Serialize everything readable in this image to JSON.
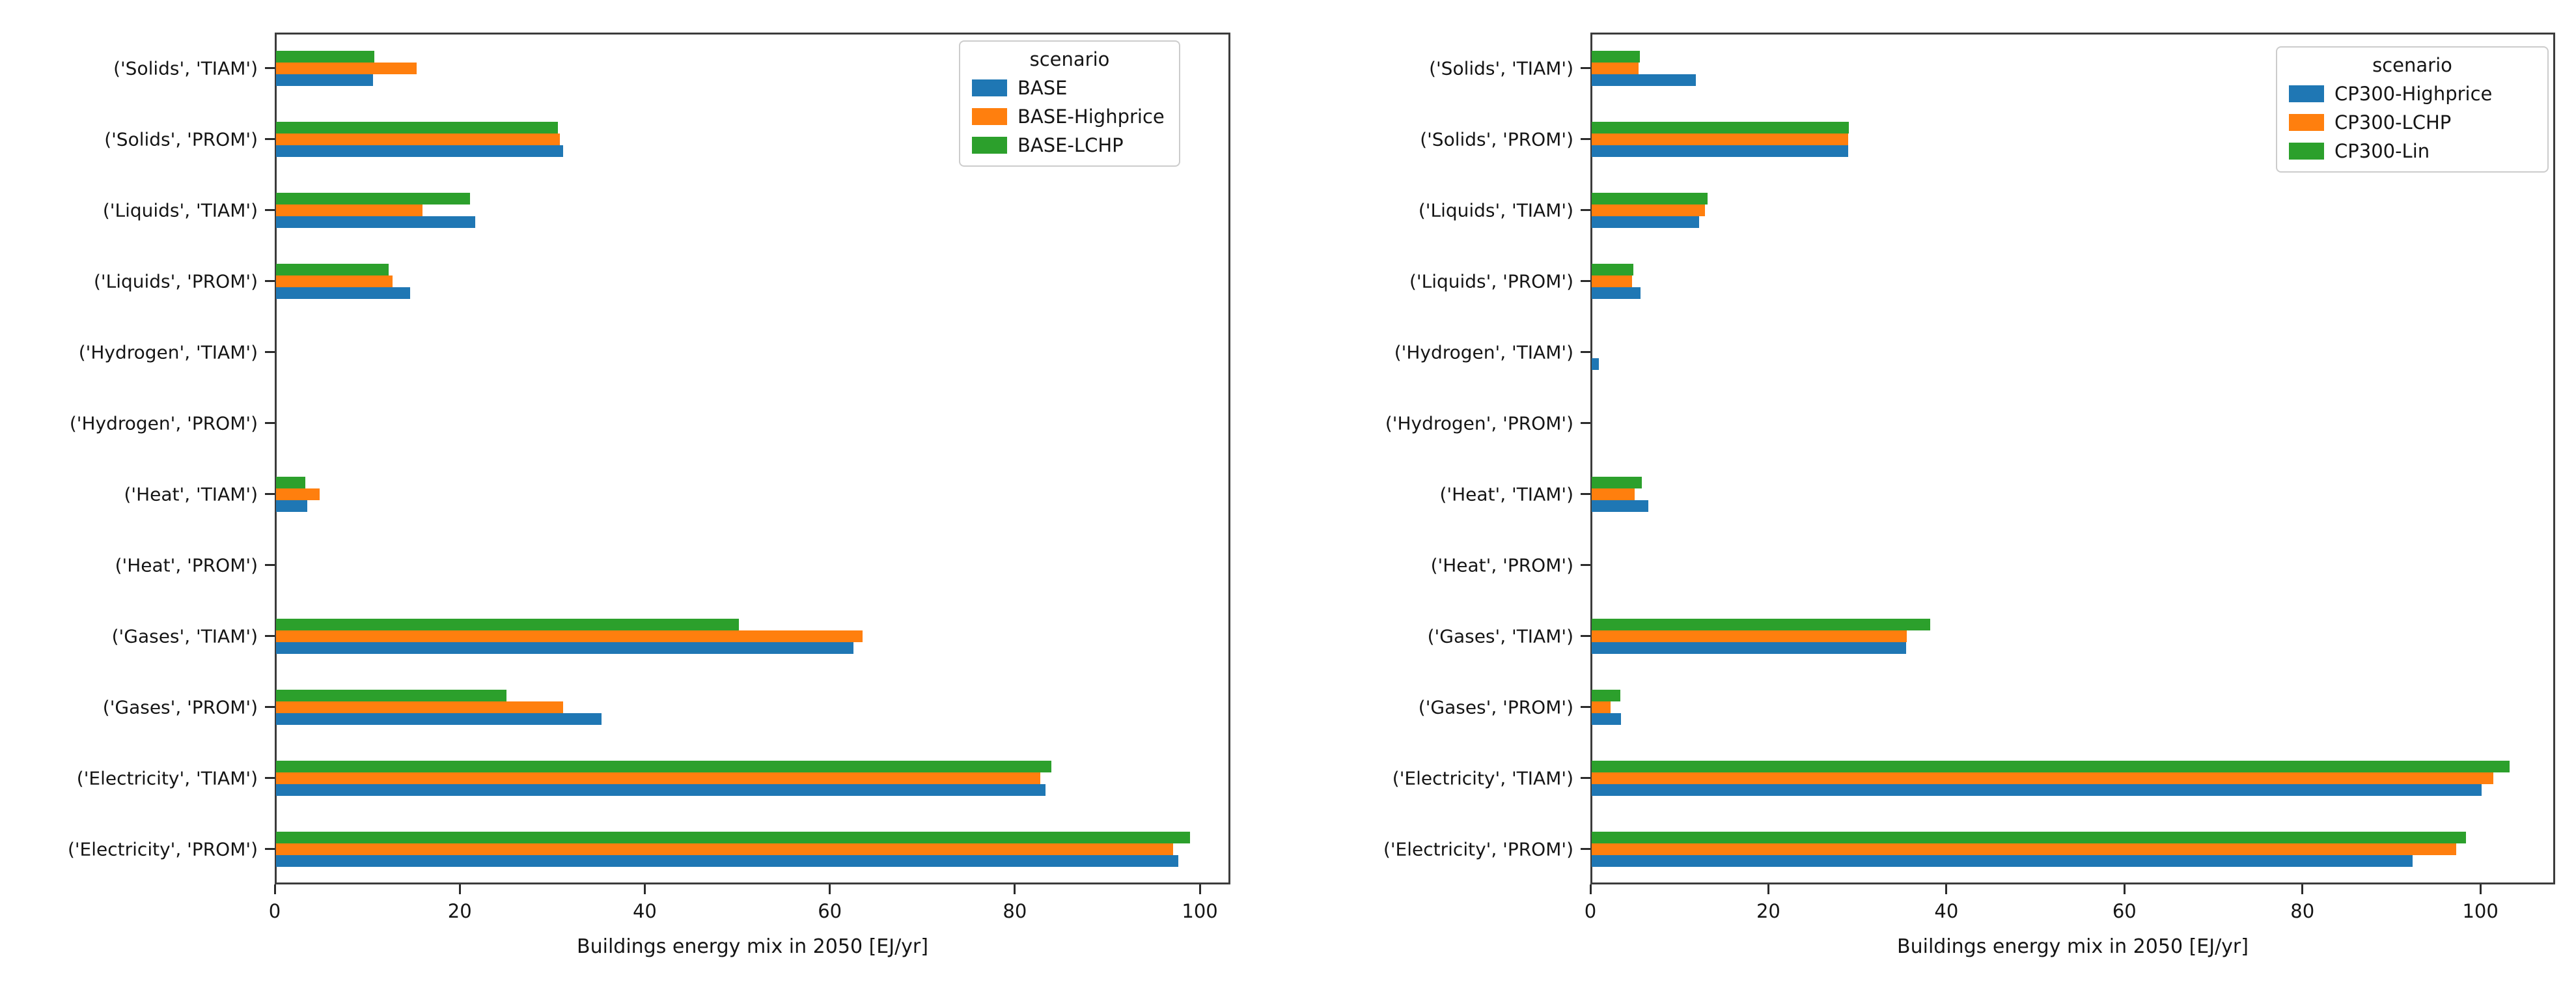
{
  "figure": {
    "background": "#ffffff",
    "palette": {
      "blue": "#1f77b4",
      "orange": "#ff7f0e",
      "green": "#2ca02c"
    },
    "xlabel": "Buildings energy mix in 2050 [EJ/yr]",
    "legend_title": "scenario"
  },
  "chart_data": [
    {
      "type": "bar",
      "orientation": "horizontal",
      "legend_title": "scenario",
      "legend_position": "upper right",
      "xlabel": "Buildings energy mix in 2050 [EJ/yr]",
      "xticks": [
        0,
        20,
        40,
        60,
        80,
        100
      ],
      "xlim": [
        0,
        103.3
      ],
      "grid": false,
      "categories": [
        "('Solids', 'TIAM')",
        "('Solids', 'PROM')",
        "('Liquids', 'TIAM')",
        "('Liquids', 'PROM')",
        "('Hydrogen', 'TIAM')",
        "('Hydrogen', 'PROM')",
        "('Heat', 'TIAM')",
        "('Heat', 'PROM')",
        "('Gases', 'TIAM')",
        "('Gases', 'PROM')",
        "('Electricity', 'TIAM')",
        "('Electricity', 'PROM')"
      ],
      "series": [
        {
          "name": "BASE",
          "color": "#1f77b4",
          "values": [
            10.5,
            31.0,
            21.5,
            14.5,
            0,
            0,
            3.4,
            0,
            62.4,
            35.2,
            83.2,
            97.5
          ]
        },
        {
          "name": "BASE-Highprice",
          "color": "#ff7f0e",
          "values": [
            15.2,
            30.7,
            15.8,
            12.6,
            0,
            0,
            4.7,
            0,
            63.4,
            31.0,
            82.6,
            97.0
          ]
        },
        {
          "name": "BASE-LCHP",
          "color": "#2ca02c",
          "values": [
            10.6,
            30.5,
            21.0,
            12.2,
            0,
            0,
            3.2,
            0,
            50.0,
            24.9,
            83.8,
            98.8
          ]
        }
      ]
    },
    {
      "type": "bar",
      "orientation": "horizontal",
      "legend_title": "scenario",
      "legend_position": "upper right",
      "xlabel": "Buildings energy mix in 2050 [EJ/yr]",
      "xticks": [
        0,
        20,
        40,
        60,
        80,
        100
      ],
      "xlim": [
        0,
        108.4
      ],
      "grid": false,
      "categories": [
        "('Solids', 'TIAM')",
        "('Solids', 'PROM')",
        "('Liquids', 'TIAM')",
        "('Liquids', 'PROM')",
        "('Hydrogen', 'TIAM')",
        "('Hydrogen', 'PROM')",
        "('Heat', 'TIAM')",
        "('Heat', 'PROM')",
        "('Gases', 'TIAM')",
        "('Gases', 'PROM')",
        "('Electricity', 'TIAM')",
        "('Electricity', 'PROM')"
      ],
      "series": [
        {
          "name": "CP300-Highprice",
          "color": "#1f77b4",
          "values": [
            11.7,
            28.8,
            12.1,
            5.5,
            0.8,
            0,
            6.4,
            0,
            35.3,
            3.3,
            100.0,
            92.2
          ]
        },
        {
          "name": "CP300-LCHP",
          "color": "#ff7f0e",
          "values": [
            5.3,
            28.8,
            12.7,
            4.5,
            0,
            0,
            4.8,
            0,
            35.4,
            2.1,
            101.3,
            97.1
          ]
        },
        {
          "name": "CP300-Lin",
          "color": "#2ca02c",
          "values": [
            5.4,
            28.9,
            13.0,
            4.7,
            0,
            0,
            5.6,
            0,
            38.0,
            3.2,
            103.1,
            98.2
          ]
        }
      ]
    }
  ]
}
